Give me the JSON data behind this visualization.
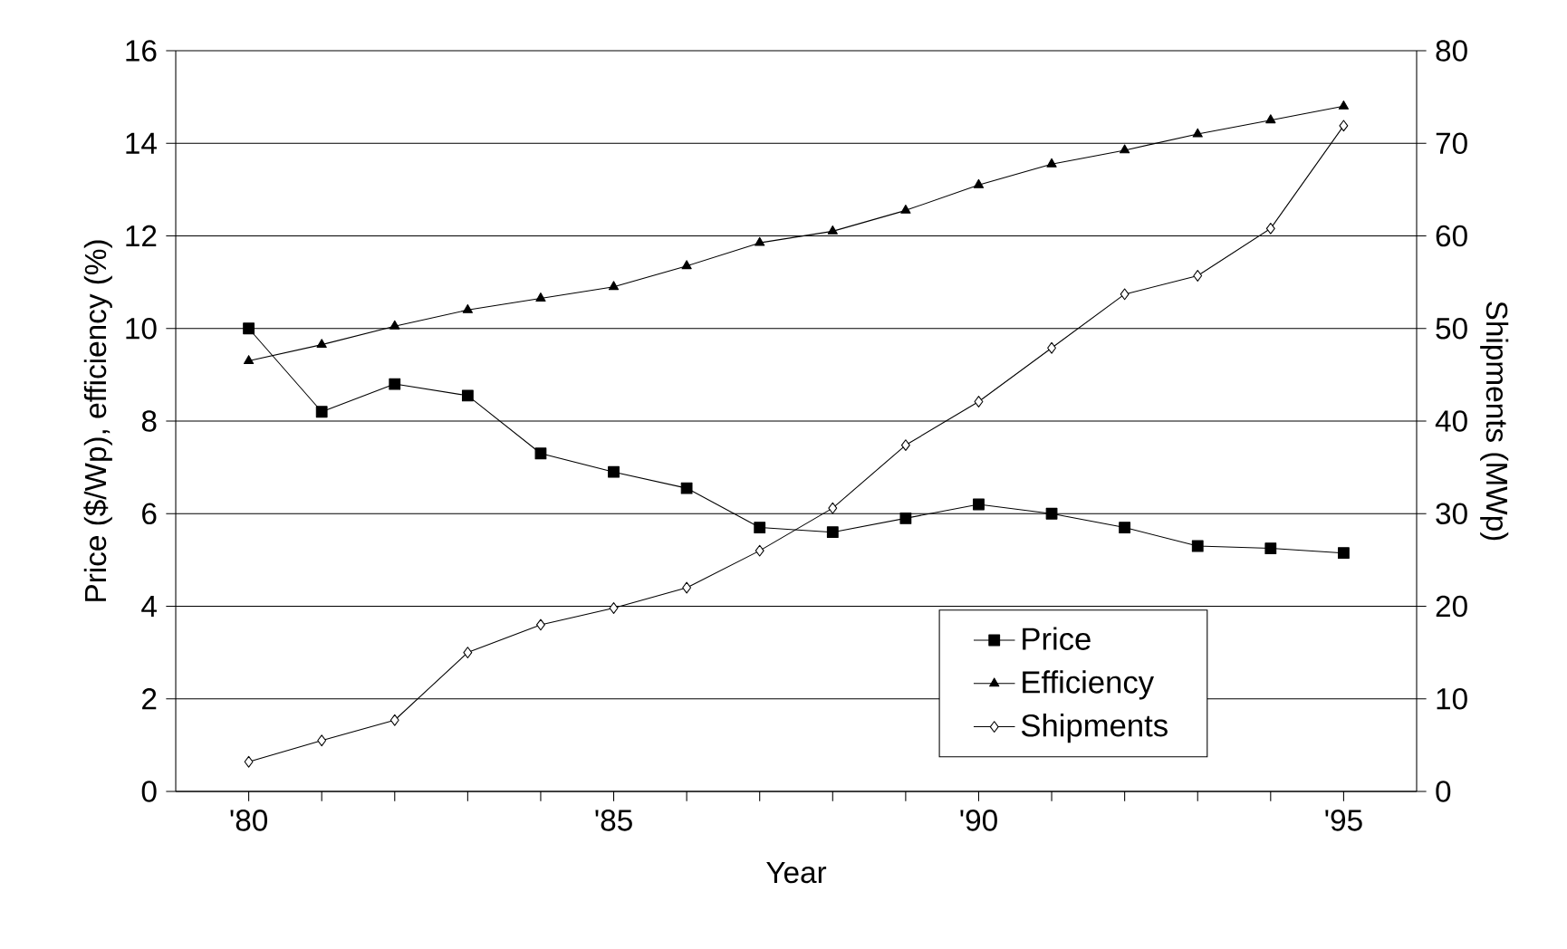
{
  "chart_data": {
    "type": "line",
    "xlabel": "Year",
    "ylabel": "Price ($/Wp), efficiency (%)",
    "y2label": "Shipments (MWp)",
    "x": [
      1980,
      1981,
      1982,
      1983,
      1984,
      1985,
      1986,
      1987,
      1988,
      1989,
      1990,
      1991,
      1992,
      1993,
      1994,
      1995
    ],
    "series": [
      {
        "name": "Price",
        "color": "#000000",
        "marker": "square",
        "values": [
          10.0,
          8.2,
          8.8,
          8.55,
          7.3,
          6.9,
          6.55,
          5.7,
          5.6,
          5.9,
          6.2,
          6.0,
          5.7,
          5.3,
          5.25,
          5.15
        ]
      },
      {
        "name": "Efficiency",
        "color": "#000000",
        "marker": "triangle",
        "values": [
          9.3,
          9.65,
          10.05,
          10.4,
          10.65,
          10.9,
          11.35,
          11.85,
          12.1,
          12.55,
          13.1,
          13.55,
          13.85,
          14.2,
          14.5,
          14.8
        ]
      },
      {
        "name": "Shipments",
        "color": "#000000",
        "marker": "diamond",
        "axis": "y2",
        "values": [
          3.2,
          5.5,
          7.7,
          15,
          18,
          19.8,
          22,
          26,
          30.6,
          37.4,
          42.1,
          47.9,
          53.7,
          55.7,
          60.8,
          71.9
        ]
      }
    ],
    "xlim": [
      1979,
      1996
    ],
    "xticks": [
      {
        "value": 1980,
        "label": "'80"
      },
      {
        "value": 1981,
        "label": null
      },
      {
        "value": 1982,
        "label": null
      },
      {
        "value": 1983,
        "label": null
      },
      {
        "value": 1984,
        "label": null
      },
      {
        "value": 1985,
        "label": "'85"
      },
      {
        "value": 1986,
        "label": null
      },
      {
        "value": 1987,
        "label": null
      },
      {
        "value": 1988,
        "label": null
      },
      {
        "value": 1989,
        "label": null
      },
      {
        "value": 1990,
        "label": "'90"
      },
      {
        "value": 1991,
        "label": null
      },
      {
        "value": 1992,
        "label": null
      },
      {
        "value": 1993,
        "label": null
      },
      {
        "value": 1994,
        "label": null
      },
      {
        "value": 1995,
        "label": "'95"
      }
    ],
    "ylim": [
      0,
      16
    ],
    "yticks": [
      0,
      2,
      4,
      6,
      8,
      10,
      12,
      14,
      16
    ],
    "y2lim": [
      0,
      80
    ],
    "y2ticks": [
      0,
      10,
      20,
      30,
      40,
      50,
      60,
      70,
      80
    ],
    "grid": "y",
    "legend": "bottom right",
    "line_style": "solid"
  }
}
